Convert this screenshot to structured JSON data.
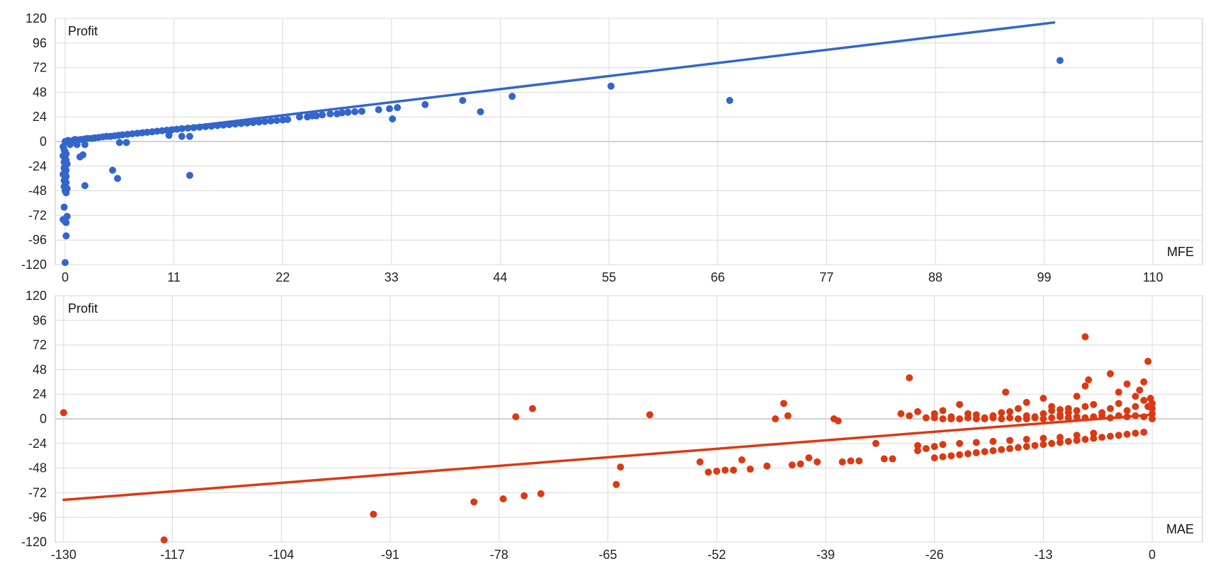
{
  "chart_data": [
    {
      "type": "scatter",
      "xlabel": "MFE",
      "ylabel": "Profit",
      "xlim": [
        -1,
        115
      ],
      "ylim": [
        -120,
        120
      ],
      "x_ticks": [
        "0",
        "11",
        "22",
        "33",
        "44",
        "55",
        "66",
        "77",
        "88",
        "99",
        "110"
      ],
      "y_ticks": [
        "120",
        "96",
        "72",
        "48",
        "24",
        "0",
        "-24",
        "-48",
        "-72",
        "-96",
        "-120"
      ],
      "color": "#3366cc",
      "grid": true,
      "trendline": {
        "x": [
          0,
          100
        ],
        "y": [
          0,
          116
        ]
      },
      "points": [
        [
          0,
          0
        ],
        [
          0.3,
          1
        ],
        [
          0.5,
          -3
        ],
        [
          0.8,
          1
        ],
        [
          1,
          2
        ],
        [
          1.3,
          1.5
        ],
        [
          1.6,
          2
        ],
        [
          2,
          2.5
        ],
        [
          2.3,
          3
        ],
        [
          2.7,
          3
        ],
        [
          3,
          3.5
        ],
        [
          3.4,
          4
        ],
        [
          3.8,
          4.5
        ],
        [
          4.2,
          5
        ],
        [
          4.6,
          5
        ],
        [
          5,
          5.5
        ],
        [
          5.4,
          6
        ],
        [
          5.8,
          6.5
        ],
        [
          6.3,
          7
        ],
        [
          6.8,
          7.5
        ],
        [
          7.3,
          8
        ],
        [
          7.8,
          8.5
        ],
        [
          8.3,
          9
        ],
        [
          8.8,
          9.5
        ],
        [
          9.3,
          10
        ],
        [
          9.8,
          10.5
        ],
        [
          10.3,
          11
        ],
        [
          10.8,
          11.5
        ],
        [
          11.3,
          12
        ],
        [
          11.8,
          12.5
        ],
        [
          12.4,
          13
        ],
        [
          13,
          13.5
        ],
        [
          13.6,
          14
        ],
        [
          14.2,
          14.5
        ],
        [
          14.8,
          15
        ],
        [
          15.4,
          15.5
        ],
        [
          16,
          16
        ],
        [
          16.6,
          16.5
        ],
        [
          17.2,
          17
        ],
        [
          17.8,
          17.5
        ],
        [
          18.4,
          18
        ],
        [
          19,
          18.5
        ],
        [
          19.6,
          19
        ],
        [
          20.2,
          19.5
        ],
        [
          20.8,
          20
        ],
        [
          21.4,
          20.5
        ],
        [
          22,
          21
        ],
        [
          22.5,
          21.5
        ],
        [
          23.7,
          24
        ],
        [
          24.5,
          24
        ],
        [
          25,
          25
        ],
        [
          25.4,
          25
        ],
        [
          26,
          26
        ],
        [
          26.8,
          27
        ],
        [
          27.5,
          27
        ],
        [
          28,
          28
        ],
        [
          28.6,
          28.5
        ],
        [
          29.3,
          29
        ],
        [
          30,
          29.5
        ],
        [
          31.7,
          31
        ],
        [
          32.8,
          32
        ],
        [
          33.6,
          33
        ],
        [
          33.1,
          22
        ],
        [
          36.4,
          36
        ],
        [
          40.2,
          40
        ],
        [
          42,
          29
        ],
        [
          45.2,
          44
        ],
        [
          55.2,
          54
        ],
        [
          67.2,
          40
        ],
        [
          100.6,
          79
        ],
        [
          1.2,
          -3
        ],
        [
          1.5,
          -15
        ],
        [
          1.8,
          -13
        ],
        [
          2,
          -3
        ],
        [
          6.2,
          -1
        ],
        [
          5.5,
          -1
        ],
        [
          10.5,
          6
        ],
        [
          11.8,
          5
        ],
        [
          12.6,
          5
        ],
        [
          4.8,
          -28
        ],
        [
          5.3,
          -36
        ],
        [
          12.6,
          -33
        ],
        [
          2,
          -43
        ],
        [
          -0.2,
          -5
        ],
        [
          -0.1,
          -8
        ],
        [
          0,
          -10
        ],
        [
          0.1,
          -12
        ],
        [
          -0.2,
          -14
        ],
        [
          0,
          -16
        ],
        [
          0.1,
          -18
        ],
        [
          -0.1,
          -20
        ],
        [
          0.2,
          -22
        ],
        [
          0,
          -24
        ],
        [
          -0.1,
          -26
        ],
        [
          0.1,
          -28
        ],
        [
          0,
          -30
        ],
        [
          -0.2,
          -32
        ],
        [
          0.1,
          -34
        ],
        [
          0,
          -36
        ],
        [
          -0.1,
          -38
        ],
        [
          0.1,
          -40
        ],
        [
          0,
          -42
        ],
        [
          -0.1,
          -44
        ],
        [
          0.2,
          -46
        ],
        [
          0,
          -48
        ],
        [
          0.1,
          -50
        ],
        [
          -0.1,
          -64
        ],
        [
          0.2,
          -73
        ],
        [
          -0.2,
          -76
        ],
        [
          0,
          -78
        ],
        [
          0.1,
          -79
        ],
        [
          0.1,
          -92
        ],
        [
          0,
          -118
        ]
      ]
    },
    {
      "type": "scatter",
      "xlabel": "MAE",
      "ylabel": "Profit",
      "xlim": [
        -131,
        6
      ],
      "ylim": [
        -120,
        120
      ],
      "x_ticks": [
        "-130",
        "-117",
        "-104",
        "-91",
        "-78",
        "-65",
        "-52",
        "-39",
        "-26",
        "-13",
        "0"
      ],
      "y_ticks": [
        "120",
        "96",
        "72",
        "48",
        "24",
        "0",
        "-24",
        "-48",
        "-72",
        "-96",
        "-120"
      ],
      "color": "#dc3912",
      "grid": true,
      "trendline": {
        "x": [
          -130,
          0
        ],
        "y": [
          -79,
          4
        ]
      },
      "points": [
        [
          -130,
          6
        ],
        [
          -118,
          -118
        ],
        [
          -93,
          -93
        ],
        [
          -81,
          -81
        ],
        [
          -77.5,
          -78
        ],
        [
          -76,
          2
        ],
        [
          -75,
          -75
        ],
        [
          -74,
          10
        ],
        [
          -73,
          -73
        ],
        [
          -60,
          4
        ],
        [
          -64,
          -64
        ],
        [
          -63.5,
          -47
        ],
        [
          -54,
          -42
        ],
        [
          -53,
          -52
        ],
        [
          -52,
          -51
        ],
        [
          -51,
          -50
        ],
        [
          -50,
          -50
        ],
        [
          -49,
          -40
        ],
        [
          -48,
          -49
        ],
        [
          -46,
          -46
        ],
        [
          -45,
          0
        ],
        [
          -44,
          15
        ],
        [
          -43.5,
          3
        ],
        [
          -43,
          -45
        ],
        [
          -42,
          -44
        ],
        [
          -41,
          -38
        ],
        [
          -40,
          -42
        ],
        [
          -38,
          0
        ],
        [
          -37.5,
          -2
        ],
        [
          -37,
          -42
        ],
        [
          -36,
          -41
        ],
        [
          -35,
          -41
        ],
        [
          -33,
          -24
        ],
        [
          -32,
          -39
        ],
        [
          -31,
          -39
        ],
        [
          -30,
          5
        ],
        [
          -29,
          3
        ],
        [
          -28,
          7
        ],
        [
          -27,
          1
        ],
        [
          -24,
          2
        ],
        [
          -26,
          -38
        ],
        [
          -25,
          -37
        ],
        [
          -24,
          -36
        ],
        [
          -23,
          -35
        ],
        [
          -22,
          -34
        ],
        [
          -21,
          -33
        ],
        [
          -20,
          -32
        ],
        [
          -19,
          -31
        ],
        [
          -18,
          -30
        ],
        [
          -17,
          -29
        ],
        [
          -16,
          -28
        ],
        [
          -15,
          -27
        ],
        [
          -14,
          -26
        ],
        [
          -13,
          -25
        ],
        [
          -12,
          -24
        ],
        [
          -11,
          -23
        ],
        [
          -10,
          -22
        ],
        [
          -9,
          -21
        ],
        [
          -8,
          -20
        ],
        [
          -7,
          -19
        ],
        [
          -6,
          -18
        ],
        [
          -5,
          -17
        ],
        [
          -4,
          -16
        ],
        [
          -3,
          -15
        ],
        [
          -2,
          -14
        ],
        [
          -1,
          -13
        ],
        [
          -28,
          -31
        ],
        [
          -28,
          -26
        ],
        [
          -27,
          -29
        ],
        [
          -26,
          -27
        ],
        [
          -25,
          -25
        ],
        [
          -23,
          -24
        ],
        [
          -21,
          -23
        ],
        [
          -19,
          -22
        ],
        [
          -17,
          -21
        ],
        [
          -15,
          -20
        ],
        [
          -13,
          -19
        ],
        [
          -11,
          -18
        ],
        [
          -9,
          -16
        ],
        [
          -7,
          -14
        ],
        [
          -29,
          40
        ],
        [
          -26,
          5
        ],
        [
          -25,
          8
        ],
        [
          -24,
          0
        ],
        [
          -23,
          14
        ],
        [
          -22,
          5
        ],
        [
          -21,
          4
        ],
        [
          -20,
          1
        ],
        [
          -19,
          3
        ],
        [
          -18,
          6
        ],
        [
          -17,
          7
        ],
        [
          -16,
          10
        ],
        [
          -15,
          3
        ],
        [
          -14,
          2
        ],
        [
          -13,
          5
        ],
        [
          -12,
          8
        ],
        [
          -11,
          4
        ],
        [
          -10,
          6
        ],
        [
          -9,
          8
        ],
        [
          -8,
          12
        ],
        [
          -17.5,
          26
        ],
        [
          -15,
          16
        ],
        [
          -13,
          20
        ],
        [
          -12,
          12
        ],
        [
          -11,
          9
        ],
        [
          -10,
          10
        ],
        [
          -9,
          22
        ],
        [
          -8,
          32
        ],
        [
          -7,
          14
        ],
        [
          -8,
          80
        ],
        [
          -7.6,
          38
        ],
        [
          -5,
          44
        ],
        [
          -4,
          26
        ],
        [
          -3,
          34
        ],
        [
          -2,
          22
        ],
        [
          -1.5,
          28
        ],
        [
          -1,
          36
        ],
        [
          -0.5,
          56
        ],
        [
          -6,
          6
        ],
        [
          -5,
          10
        ],
        [
          -4,
          15
        ],
        [
          -3,
          8
        ],
        [
          -2,
          12
        ],
        [
          -1,
          18
        ],
        [
          -0.5,
          12
        ],
        [
          -0.2,
          20
        ],
        [
          0,
          10
        ],
        [
          0,
          15
        ],
        [
          0,
          5
        ],
        [
          0,
          0
        ],
        [
          -1,
          2
        ],
        [
          -2,
          3
        ],
        [
          -3,
          2
        ],
        [
          -4,
          3
        ],
        [
          -5,
          1
        ],
        [
          -6,
          3
        ],
        [
          -7,
          2
        ],
        [
          -8,
          1
        ],
        [
          -9,
          2
        ],
        [
          -10,
          1
        ],
        [
          -11,
          2
        ],
        [
          -12,
          1
        ],
        [
          -13,
          0
        ],
        [
          -14,
          1
        ],
        [
          -15,
          0
        ],
        [
          -16,
          0
        ],
        [
          -17,
          1
        ],
        [
          -18,
          0
        ],
        [
          -19,
          1
        ],
        [
          -20,
          0
        ],
        [
          -21,
          0
        ],
        [
          -22,
          1
        ],
        [
          -23,
          0
        ],
        [
          -25,
          0
        ],
        [
          -26,
          1
        ]
      ]
    }
  ]
}
